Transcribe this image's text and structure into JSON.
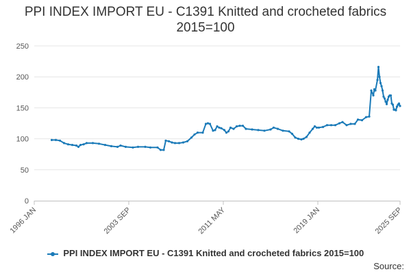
{
  "title": "PPI INDEX IMPORT EU - C1391 Knitted and crocheted fabrics 2015=100",
  "source_label": "Source:",
  "chart_data": {
    "type": "line",
    "title": "PPI INDEX IMPORT EU - C1391 Knitted and crocheted fabrics 2015=100",
    "xlabel": "",
    "ylabel": "",
    "ylim": [
      0,
      250
    ],
    "y_ticks": [
      0,
      50,
      100,
      150,
      200,
      250
    ],
    "xlim": [
      "1996-01",
      "2025-09"
    ],
    "x_ticks": [
      {
        "date": "1996-01",
        "label": "1996 JAN"
      },
      {
        "date": "2003-09",
        "label": "2003 SEP"
      },
      {
        "date": "2011-05",
        "label": "2011 MAY"
      },
      {
        "date": "2019-01",
        "label": "2019 JAN"
      },
      {
        "date": "2025-09",
        "label": "2025 SEP"
      }
    ],
    "grid": "horizontal",
    "legend_position": "bottom",
    "series": [
      {
        "name": "PPI INDEX IMPORT EU - C1391 Knitted and crocheted fabrics 2015=100",
        "color": "#1a7ab8",
        "points": [
          [
            "1997-06",
            98
          ],
          [
            "1997-10",
            98
          ],
          [
            "1998-02",
            97
          ],
          [
            "1998-06",
            93
          ],
          [
            "1998-10",
            91
          ],
          [
            "1999-02",
            90
          ],
          [
            "1999-06",
            89
          ],
          [
            "1999-08",
            87
          ],
          [
            "1999-10",
            90
          ],
          [
            "2000-01",
            91
          ],
          [
            "2000-04",
            93
          ],
          [
            "2000-10",
            93
          ],
          [
            "2001-04",
            92
          ],
          [
            "2001-10",
            90
          ],
          [
            "2002-04",
            88
          ],
          [
            "2002-10",
            87
          ],
          [
            "2003-01",
            89
          ],
          [
            "2003-06",
            87
          ],
          [
            "2004-01",
            86
          ],
          [
            "2004-06",
            87
          ],
          [
            "2005-01",
            87
          ],
          [
            "2005-06",
            86
          ],
          [
            "2006-01",
            86
          ],
          [
            "2006-04",
            82
          ],
          [
            "2006-07",
            82
          ],
          [
            "2006-09",
            97
          ],
          [
            "2006-12",
            96
          ],
          [
            "2007-03",
            94
          ],
          [
            "2007-06",
            93
          ],
          [
            "2007-10",
            93
          ],
          [
            "2008-02",
            94
          ],
          [
            "2008-06",
            96
          ],
          [
            "2008-10",
            102
          ],
          [
            "2009-01",
            107
          ],
          [
            "2009-04",
            110
          ],
          [
            "2009-09",
            110
          ],
          [
            "2009-12",
            124
          ],
          [
            "2010-02",
            125
          ],
          [
            "2010-04",
            124
          ],
          [
            "2010-07",
            113
          ],
          [
            "2010-09",
            114
          ],
          [
            "2010-11",
            120
          ],
          [
            "2011-01",
            118
          ],
          [
            "2011-03",
            117
          ],
          [
            "2011-06",
            114
          ],
          [
            "2011-08",
            110
          ],
          [
            "2011-10",
            112
          ],
          [
            "2011-12",
            118
          ],
          [
            "2012-03",
            116
          ],
          [
            "2012-06",
            120
          ],
          [
            "2012-09",
            121
          ],
          [
            "2012-12",
            121
          ],
          [
            "2013-03",
            116
          ],
          [
            "2013-09",
            115
          ],
          [
            "2014-03",
            114
          ],
          [
            "2014-09",
            113
          ],
          [
            "2015-03",
            115
          ],
          [
            "2015-06",
            118
          ],
          [
            "2015-10",
            116
          ],
          [
            "2016-03",
            113
          ],
          [
            "2016-09",
            112
          ],
          [
            "2016-12",
            108
          ],
          [
            "2017-03",
            102
          ],
          [
            "2017-06",
            100
          ],
          [
            "2017-09",
            99
          ],
          [
            "2017-11",
            100
          ],
          [
            "2018-02",
            103
          ],
          [
            "2018-05",
            110
          ],
          [
            "2018-08",
            116
          ],
          [
            "2018-10",
            120
          ],
          [
            "2018-12",
            118
          ],
          [
            "2019-02",
            118
          ],
          [
            "2019-06",
            119
          ],
          [
            "2019-10",
            122
          ],
          [
            "2020-02",
            122
          ],
          [
            "2020-06",
            122
          ],
          [
            "2020-10",
            125
          ],
          [
            "2021-01",
            127
          ],
          [
            "2021-05",
            122
          ],
          [
            "2021-09",
            124
          ],
          [
            "2022-01",
            124
          ],
          [
            "2022-04",
            131
          ],
          [
            "2022-08",
            130
          ],
          [
            "2022-12",
            135
          ],
          [
            "2023-03",
            136
          ],
          [
            "2023-05",
            178
          ],
          [
            "2023-07",
            170
          ],
          [
            "2023-08",
            180
          ],
          [
            "2023-09",
            178
          ],
          [
            "2023-11",
            195
          ],
          [
            "2023-12",
            216
          ],
          [
            "2024-01",
            200
          ],
          [
            "2024-02",
            190
          ],
          [
            "2024-03",
            185
          ],
          [
            "2024-04",
            178
          ],
          [
            "2024-05",
            168
          ],
          [
            "2024-06",
            165
          ],
          [
            "2024-07",
            160
          ],
          [
            "2024-08",
            156
          ],
          [
            "2024-09",
            163
          ],
          [
            "2024-10",
            168
          ],
          [
            "2024-11",
            170
          ],
          [
            "2024-12",
            170
          ],
          [
            "2025-01",
            157
          ],
          [
            "2025-02",
            155
          ],
          [
            "2025-03",
            147
          ],
          [
            "2025-04",
            147
          ],
          [
            "2025-05",
            146
          ],
          [
            "2025-06",
            152
          ],
          [
            "2025-07",
            155
          ],
          [
            "2025-08",
            157
          ],
          [
            "2025-09",
            153
          ]
        ]
      }
    ]
  }
}
